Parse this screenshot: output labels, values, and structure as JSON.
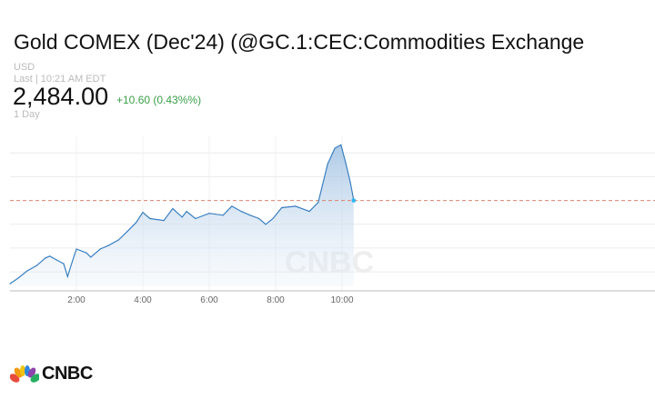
{
  "header": {
    "title": "Gold COMEX (Dec'24) (@GC.1:CEC:Commodities Exchange",
    "currency": "USD",
    "last_time": "Last | 10:21 AM EDT",
    "price": "2,484.00",
    "change": "+10.60 (0.43%%)",
    "range": "1 Day",
    "change_color": "#3aa048"
  },
  "chart_data": {
    "type": "area",
    "xlabel": "",
    "ylabel": "",
    "x_tick_labels": [
      "2:00",
      "4:00",
      "6:00",
      "8:00",
      "10:00"
    ],
    "xlim": [
      "0:00",
      "19:15"
    ],
    "ylim": [
      2465,
      2497.5
    ],
    "grid": true,
    "y_gridlines": [
      2469,
      2474,
      2479,
      2484,
      2489,
      2494
    ],
    "reference_line": 2484.0,
    "line_color": "#3a7fc1",
    "reference_color": "#d9826f",
    "last_marker_color": "#29b6f6",
    "watermark": "CNBC",
    "x": [
      "0:00",
      "0:15",
      "0:31",
      "0:48",
      "1:04",
      "1:12",
      "1:24",
      "1:37",
      "1:44",
      "1:53",
      "2:00",
      "2:18",
      "2:26",
      "2:43",
      "2:59",
      "3:16",
      "3:32",
      "3:48",
      "4:00",
      "4:13",
      "4:38",
      "4:54",
      "5:11",
      "5:19",
      "5:35",
      "6:00",
      "6:25",
      "6:41",
      "6:58",
      "7:14",
      "7:30",
      "7:42",
      "7:55",
      "8:11",
      "8:36",
      "9:01",
      "9:17",
      "9:34",
      "9:47",
      "9:58",
      "10:07",
      "10:15",
      "10:19",
      "10:21"
    ],
    "y": [
      2466.5,
      2467.7,
      2469.2,
      2470.3,
      2471.9,
      2472.3,
      2471.5,
      2470.7,
      2468.0,
      2471.3,
      2473.8,
      2473.0,
      2472.1,
      2473.8,
      2474.6,
      2475.7,
      2477.5,
      2479.4,
      2481.5,
      2480.2,
      2479.8,
      2482.3,
      2480.5,
      2481.7,
      2480.2,
      2481.3,
      2480.9,
      2482.8,
      2481.7,
      2480.9,
      2480.2,
      2479.0,
      2480.2,
      2482.5,
      2482.8,
      2481.7,
      2483.6,
      2491.7,
      2495.0,
      2495.7,
      2491.7,
      2487.8,
      2485.3,
      2484.0
    ]
  },
  "footer": {
    "logo": "CNBC"
  }
}
